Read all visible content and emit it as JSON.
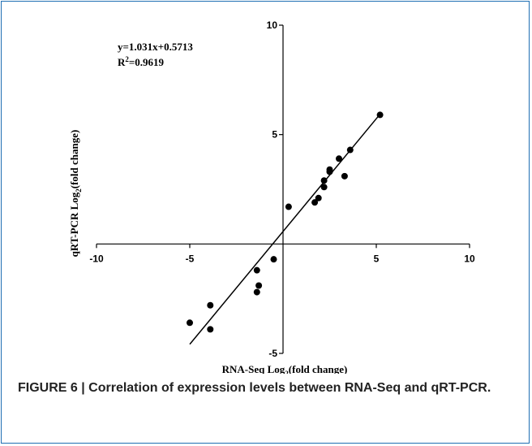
{
  "chart_data": {
    "type": "scatter",
    "title": "",
    "xlabel": "RNA-Seq Log",
    "xlabel_sub": "2",
    "xlabel_tail": "(fold change)",
    "ylabel": "qRT-PCR Log",
    "ylabel_sub": "2",
    "ylabel_tail": "(fold change)",
    "xlim": [
      -10,
      10
    ],
    "ylim": [
      -5,
      10
    ],
    "x_ticks": [
      -10,
      -5,
      5,
      10
    ],
    "y_ticks": [
      -5,
      5,
      10
    ],
    "grid": false,
    "axes_through_origin": true,
    "annotation": {
      "equation": "y=1.031x+0.5713",
      "r2_prefix": "R",
      "r2_sup": "2",
      "r2_value": "=0.9619"
    },
    "regression": {
      "slope": 1.031,
      "intercept": 0.5713,
      "x_range": [
        -5.0,
        5.2
      ]
    },
    "points": [
      {
        "x": -5.0,
        "y": -3.6
      },
      {
        "x": -3.9,
        "y": -2.8
      },
      {
        "x": -3.9,
        "y": -3.9
      },
      {
        "x": -1.4,
        "y": -1.2
      },
      {
        "x": -1.3,
        "y": -1.9
      },
      {
        "x": -1.4,
        "y": -2.2
      },
      {
        "x": -0.5,
        "y": -0.7
      },
      {
        "x": 0.3,
        "y": 1.7
      },
      {
        "x": 1.7,
        "y": 1.9
      },
      {
        "x": 1.9,
        "y": 2.1
      },
      {
        "x": 2.2,
        "y": 2.6
      },
      {
        "x": 2.2,
        "y": 2.9
      },
      {
        "x": 2.5,
        "y": 3.3
      },
      {
        "x": 2.5,
        "y": 3.4
      },
      {
        "x": 3.0,
        "y": 3.9
      },
      {
        "x": 3.3,
        "y": 3.1
      },
      {
        "x": 3.6,
        "y": 4.3
      },
      {
        "x": 5.2,
        "y": 5.9
      }
    ],
    "marker_color": "#000000"
  },
  "caption": "FIGURE 6 | Correlation of expression levels between RNA-Seq and qRT-PCR."
}
